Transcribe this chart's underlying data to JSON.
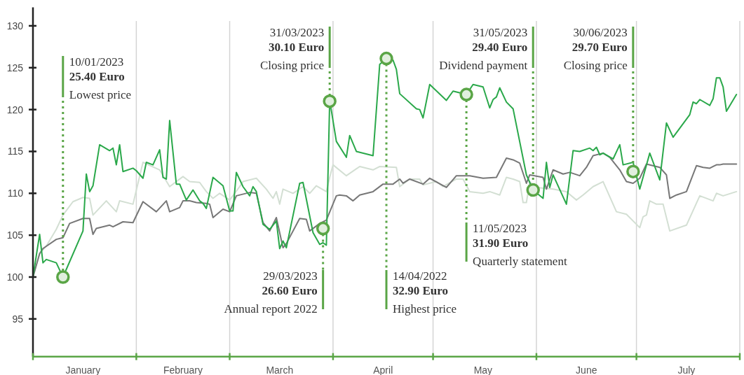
{
  "chart_data": {
    "type": "line",
    "xlim": [
      "2023-01-01",
      "2023-08-01"
    ],
    "xticks": [
      {
        "value": "2023-01-01",
        "label": null
      },
      {
        "value": "2023-01-16",
        "label": "January"
      },
      {
        "value": "2023-02-01",
        "label": null
      },
      {
        "value": "2023-02-15",
        "label": "February"
      },
      {
        "value": "2023-03-01",
        "label": null
      },
      {
        "value": "2023-03-16",
        "label": "March"
      },
      {
        "value": "2023-04-01",
        "label": null
      },
      {
        "value": "2023-04-16",
        "label": "April"
      },
      {
        "value": "2023-05-01",
        "label": null
      },
      {
        "value": "2023-05-16",
        "label": "May"
      },
      {
        "value": "2023-06-01",
        "label": null
      },
      {
        "value": "2023-06-16",
        "label": "June"
      },
      {
        "value": "2023-07-01",
        "label": null
      },
      {
        "value": "2023-07-16",
        "label": "July"
      },
      {
        "value": "2023-08-01",
        "label": null
      }
    ],
    "ylim": [
      90.5,
      132.2
    ],
    "yticks": [
      95,
      100,
      105,
      110,
      115,
      120,
      125,
      130
    ],
    "grid": "x",
    "series": [
      {
        "color": "#d3dfd3",
        "x": [
          "2023-01-01",
          "2023-01-03",
          "2023-01-05",
          "2023-01-08",
          "2023-01-10",
          "2023-01-13",
          "2023-01-16",
          "2023-01-18",
          "2023-01-19",
          "2023-01-23",
          "2023-01-26",
          "2023-01-27",
          "2023-01-31",
          "2023-02-03",
          "2023-02-08",
          "2023-02-11",
          "2023-02-15",
          "2023-02-17",
          "2023-02-20",
          "2023-02-22",
          "2023-02-24",
          "2023-02-26",
          "2023-03-01",
          "2023-03-04",
          "2023-03-05",
          "2023-03-09",
          "2023-03-12",
          "2023-03-14",
          "2023-03-15",
          "2023-03-16",
          "2023-03-17",
          "2023-03-20",
          "2023-03-23",
          "2023-03-25",
          "2023-03-27",
          "2023-03-30",
          "2023-03-31",
          "2023-04-01",
          "2023-04-05",
          "2023-04-09",
          "2023-04-13",
          "2023-04-15",
          "2023-04-20",
          "2023-04-21",
          "2023-04-24",
          "2023-04-27",
          "2023-04-28",
          "2023-05-02",
          "2023-05-04",
          "2023-05-08",
          "2023-05-10",
          "2023-05-12",
          "2023-05-16",
          "2023-05-18",
          "2023-05-21",
          "2023-05-23",
          "2023-05-25",
          "2023-05-27",
          "2023-05-28",
          "2023-05-29",
          "2023-05-30",
          "2023-06-01",
          "2023-06-06",
          "2023-06-10",
          "2023-06-13",
          "2023-06-15",
          "2023-06-18",
          "2023-06-21",
          "2023-06-25",
          "2023-06-28",
          "2023-07-02",
          "2023-07-03",
          "2023-07-04",
          "2023-07-05",
          "2023-07-07",
          "2023-07-09",
          "2023-07-11",
          "2023-07-16",
          "2023-07-20",
          "2023-07-24",
          "2023-07-25",
          "2023-07-27",
          "2023-07-31"
        ],
        "values": [
          100,
          102.8,
          103.7,
          105.7,
          107.4,
          109,
          109.5,
          109.4,
          107.4,
          109.1,
          107.8,
          109.1,
          108.7,
          113.7,
          112.8,
          110.8,
          112,
          111.4,
          111.3,
          110.2,
          109.4,
          110,
          109.2,
          110.8,
          111.4,
          111.8,
          110.5,
          109.4,
          110.2,
          108.7,
          110.5,
          110,
          110.8,
          110,
          110.9,
          110.2,
          111.9,
          113.4,
          112.1,
          113.2,
          112.8,
          113.2,
          113.1,
          110.8,
          111.7,
          111.7,
          111,
          111.4,
          110.8,
          111.7,
          111.7,
          110.2,
          110,
          110.2,
          109.8,
          111.9,
          111.7,
          111.4,
          108.9,
          108.9,
          111.4,
          110.7,
          110.5,
          110.2,
          109.2,
          109.8,
          110.8,
          111.4,
          107.8,
          107.5,
          105.9,
          107.2,
          107.4,
          109.1,
          108.7,
          108.7,
          105.5,
          106.2,
          109.7,
          109.1,
          110,
          109.7,
          110.2
        ]
      },
      {
        "color": "#777777",
        "x": [
          "2023-01-01",
          "2023-01-03",
          "2023-01-04",
          "2023-01-08",
          "2023-01-10",
          "2023-01-12",
          "2023-01-16",
          "2023-01-18",
          "2023-01-19",
          "2023-01-20",
          "2023-01-24",
          "2023-01-25",
          "2023-01-28",
          "2023-01-31",
          "2023-02-03",
          "2023-02-07",
          "2023-02-10",
          "2023-02-11",
          "2023-02-14",
          "2023-02-15",
          "2023-02-17",
          "2023-02-19",
          "2023-02-22",
          "2023-02-23",
          "2023-02-24",
          "2023-02-27",
          "2023-03-01",
          "2023-03-03",
          "2023-03-07",
          "2023-03-09",
          "2023-03-11",
          "2023-03-13",
          "2023-03-15",
          "2023-03-17",
          "2023-03-18",
          "2023-03-22",
          "2023-03-24",
          "2023-03-25",
          "2023-03-28",
          "2023-03-30",
          "2023-04-02",
          "2023-04-03",
          "2023-04-05",
          "2023-04-07",
          "2023-04-09",
          "2023-04-13",
          "2023-04-16",
          "2023-04-19",
          "2023-04-21",
          "2023-04-22",
          "2023-04-24",
          "2023-04-28",
          "2023-04-30",
          "2023-05-05",
          "2023-05-08",
          "2023-05-12",
          "2023-05-16",
          "2023-05-20",
          "2023-05-23",
          "2023-05-25",
          "2023-05-27",
          "2023-05-29",
          "2023-05-30",
          "2023-06-03",
          "2023-06-04",
          "2023-06-06",
          "2023-06-09",
          "2023-06-11",
          "2023-06-14",
          "2023-06-16",
          "2023-06-18",
          "2023-06-21",
          "2023-06-23",
          "2023-06-26",
          "2023-06-28",
          "2023-06-30",
          "2023-07-02",
          "2023-07-04",
          "2023-07-08",
          "2023-07-10",
          "2023-07-11",
          "2023-07-13",
          "2023-07-16",
          "2023-07-19",
          "2023-07-21",
          "2023-07-23",
          "2023-07-25",
          "2023-07-26",
          "2023-07-27",
          "2023-07-31"
        ],
        "values": [
          100,
          102.8,
          103.4,
          104.5,
          104.7,
          106.4,
          107,
          107,
          105.1,
          105.8,
          106.2,
          106,
          106.6,
          106.5,
          109,
          107.8,
          109.1,
          107.8,
          108.3,
          109.1,
          109.1,
          108.9,
          108.8,
          108.7,
          107.1,
          108.1,
          107.8,
          109.7,
          110.1,
          110,
          106.5,
          105.5,
          107.1,
          103.5,
          104,
          107,
          106.9,
          105.5,
          106.4,
          106.8,
          109.7,
          109.8,
          109.7,
          109.1,
          109.8,
          110.2,
          111.1,
          111.1,
          111.7,
          111.2,
          111.7,
          111.1,
          111.8,
          110.7,
          112.1,
          112.1,
          111.8,
          111.9,
          114.2,
          114,
          113.6,
          111.2,
          112.2,
          111.9,
          110.5,
          112.8,
          112.3,
          112.5,
          112.1,
          113.1,
          114.5,
          114.8,
          114.3,
          112.8,
          111.4,
          111.2,
          111.8,
          113.5,
          113.1,
          112.2,
          109.4,
          109.8,
          110.2,
          113.3,
          113.1,
          113,
          113.4,
          113.4,
          113.5,
          113.5
        ]
      },
      {
        "type": "scatter",
        "color": "#5aa546",
        "marker": "circle",
        "x": [
          "2023-01-10",
          "2023-03-29",
          "2023-03-31",
          "2023-04-17",
          "2023-05-11",
          "2023-05-31",
          "2023-06-30"
        ],
        "values": [
          100,
          105.8,
          121,
          126.1,
          121.8,
          110.4,
          112.6
        ]
      },
      {
        "color": "#2aa84a",
        "x": [
          "2023-01-01",
          "2023-01-03",
          "2023-01-04",
          "2023-01-05",
          "2023-01-08",
          "2023-01-10",
          "2023-01-16",
          "2023-01-17",
          "2023-01-18",
          "2023-01-19",
          "2023-01-21",
          "2023-01-24",
          "2023-01-25",
          "2023-01-26",
          "2023-01-27",
          "2023-01-28",
          "2023-01-31",
          "2023-02-01",
          "2023-02-03",
          "2023-02-04",
          "2023-02-06",
          "2023-02-08",
          "2023-02-09",
          "2023-02-10",
          "2023-02-11",
          "2023-02-13",
          "2023-02-14",
          "2023-02-16",
          "2023-02-18",
          "2023-02-20",
          "2023-02-21",
          "2023-02-22",
          "2023-02-24",
          "2023-02-27",
          "2023-03-01",
          "2023-03-02",
          "2023-03-03",
          "2023-03-05",
          "2023-03-07",
          "2023-03-08",
          "2023-03-09",
          "2023-03-11",
          "2023-03-13",
          "2023-03-15",
          "2023-03-16",
          "2023-03-17",
          "2023-03-18",
          "2023-03-22",
          "2023-03-23",
          "2023-03-26",
          "2023-03-28",
          "2023-03-29",
          "2023-03-30",
          "2023-03-31",
          "2023-04-02",
          "2023-04-05",
          "2023-04-06",
          "2023-04-08",
          "2023-04-13",
          "2023-04-15",
          "2023-04-17",
          "2023-04-19",
          "2023-04-20",
          "2023-04-21",
          "2023-04-26",
          "2023-04-27",
          "2023-04-28",
          "2023-04-30",
          "2023-05-05",
          "2023-05-07",
          "2023-05-11",
          "2023-05-13",
          "2023-05-16",
          "2023-05-18",
          "2023-05-19",
          "2023-05-20",
          "2023-05-21",
          "2023-05-23",
          "2023-05-25",
          "2023-05-29",
          "2023-05-31",
          "2023-06-03",
          "2023-06-04",
          "2023-06-05",
          "2023-06-06",
          "2023-06-10",
          "2023-06-12",
          "2023-06-14",
          "2023-06-17",
          "2023-06-18",
          "2023-06-19",
          "2023-06-20",
          "2023-06-21",
          "2023-06-24",
          "2023-06-26",
          "2023-06-27",
          "2023-06-30",
          "2023-07-02",
          "2023-07-05",
          "2023-07-08",
          "2023-07-10",
          "2023-07-12",
          "2023-07-17",
          "2023-07-18",
          "2023-07-19",
          "2023-07-20",
          "2023-07-23",
          "2023-07-24",
          "2023-07-25",
          "2023-07-26",
          "2023-07-27",
          "2023-07-28",
          "2023-07-31"
        ],
        "values": [
          100,
          105.1,
          101.7,
          102.1,
          101.7,
          100,
          105.5,
          112.3,
          110.2,
          110.9,
          115.8,
          115.1,
          115.4,
          113.4,
          115.8,
          112.6,
          113,
          112.7,
          111.8,
          113.7,
          113.4,
          115.2,
          111.9,
          111.7,
          118.7,
          111.1,
          111.1,
          109.2,
          110.4,
          109.1,
          108.8,
          108.2,
          111.9,
          110.9,
          107.9,
          107.9,
          112.5,
          110.8,
          109.7,
          110.8,
          110.2,
          106.3,
          105.7,
          106.7,
          103.4,
          104.3,
          103.5,
          111.2,
          111.3,
          105.3,
          103.9,
          104.1,
          103.8,
          121.1,
          116.2,
          114.3,
          116.9,
          115,
          114.5,
          125.4,
          126.1,
          125.9,
          124.8,
          121.9,
          120.1,
          120,
          119,
          123,
          121.1,
          122.2,
          121.8,
          123,
          122.7,
          120.2,
          121.2,
          121.5,
          122.6,
          120.9,
          120.1,
          112.2,
          110.4,
          109.4,
          113.7,
          110.7,
          112.2,
          108.7,
          115.1,
          115,
          115.4,
          115.1,
          115.5,
          114.6,
          114.8,
          114.1,
          115.8,
          113.4,
          113.7,
          110.5,
          114.8,
          111.6,
          118.4,
          116.7,
          119.4,
          120.9,
          120.7,
          121.2,
          120.5,
          121.3,
          123.8,
          123.8,
          122.7,
          119.8,
          121.8
        ]
      }
    ],
    "annotations": [
      {
        "text": "10/01/2023\n25.40 Euro\nLowest price",
        "x": "2023-01-10",
        "y": 100
      },
      {
        "text": "29/03/2023\n26.60 Euro\nAnnual report 2022",
        "x": "2023-03-29",
        "y": 105.8
      },
      {
        "text": "31/03/2023\n30.10 Euro\nClosing price",
        "x": "2023-03-31",
        "y": 121
      },
      {
        "text": "14/04/2022\n32.90 Euro\nHighest price",
        "x": "2023-04-17",
        "y": 126.1
      },
      {
        "text": "11/05/2023\n31.90 Euro\nQuarterly statement",
        "x": "2023-05-11",
        "y": 121.8
      },
      {
        "text": "31/05/2023\n29.40 Euro\nDividend payment",
        "x": "2023-05-31",
        "y": 110.4
      },
      {
        "text": "30/06/2023\n29.70 Euro\nClosing price",
        "x": "2023-06-30",
        "y": 112.6
      }
    ]
  }
}
